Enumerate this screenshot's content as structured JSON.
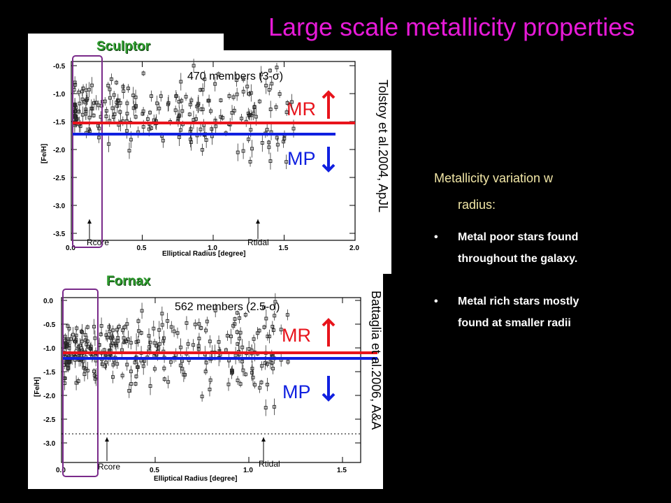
{
  "slide": {
    "title": "Large scale metallicity properties"
  },
  "panels": [
    {
      "galaxy": "Sculptor",
      "members": "470 members (3-σ)",
      "reference": "Tolstoy et al.2004, ApJL",
      "mr": "MR",
      "mp": "MP",
      "rcore": "Rcore",
      "rtidal": "Rtidal",
      "xlabel": "Elliptical Radius [degree]",
      "ylabel": "[Fe/H]",
      "xticks": [
        "0.0",
        "0.5",
        "1.0",
        "1.5",
        "2.0"
      ],
      "yticks": [
        "-0.5",
        "-1.0",
        "-1.5",
        "-2.0",
        "-2.5",
        "-3.0",
        "-3.5"
      ],
      "colors": {
        "mr": "#e8141c",
        "mp": "#1020e0",
        "box": "#7a2a8a"
      }
    },
    {
      "galaxy": "Fornax",
      "members": "562 members (2.5-σ)",
      "reference": "Battaglia et al.2006, A&A",
      "mr": "MR",
      "mp": "MP",
      "rcore": "Rcore",
      "rtidal": "Rtidal",
      "xlabel": "Elliptical Radius [degree]",
      "ylabel": "[Fe/H]",
      "xticks": [
        "0.0",
        "0.5",
        "1.0",
        "1.5"
      ],
      "yticks": [
        "0.0",
        "-0.5",
        "-1.0",
        "-1.5",
        "-2.0",
        "-2.5",
        "-3.0"
      ],
      "colors": {
        "mr": "#e8141c",
        "mp": "#1020e0",
        "box": "#7a2a8a"
      }
    }
  ],
  "text": {
    "lead1": "Metallicity variation w",
    "lead2": "radius:",
    "bullet_char": "•",
    "bullet1a": "Metal poor stars found",
    "bullet1b": "throughout the galaxy.",
    "bullet2a": "Metal rich stars mostly",
    "bullet2b": "found at smaller radii"
  }
}
